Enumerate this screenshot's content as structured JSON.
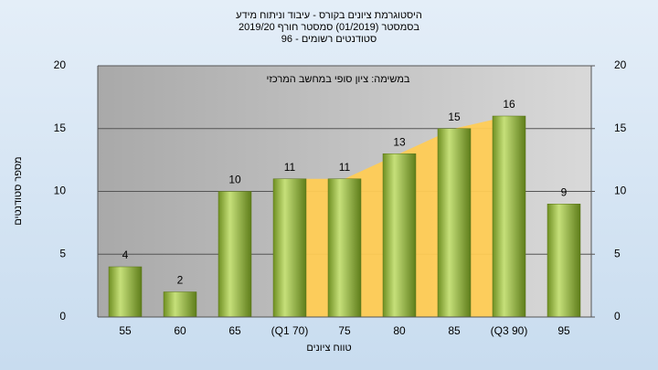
{
  "chart_data": {
    "type": "bar",
    "title": "היסטוגרמת ציונים בקורס - עיבוד וניתוח מידע",
    "subtitle": "בסמסטר (01/2019) סמסטר חורף 2019/20",
    "subtitle2": "96 - סטודנטים רשומים",
    "annotation": "במשימה: ציון סופי במחשב המרכזי",
    "ylabel": "מספר סטודנטים",
    "xlabel": "טווח ציונים",
    "categories": [
      "55",
      "60",
      "65",
      "(Q1 70)",
      "75",
      "80",
      "85",
      "(Q3 90)",
      "95"
    ],
    "values": [
      4,
      2,
      10,
      11,
      11,
      13,
      15,
      16,
      9
    ],
    "color": "#8db33a",
    "ylim": [
      0,
      20
    ],
    "yticks": [
      0,
      5,
      10,
      15,
      20
    ],
    "y2lim": [
      0,
      20
    ],
    "y2ticks": [
      0,
      5,
      10,
      15,
      20
    ],
    "grid": true
  }
}
